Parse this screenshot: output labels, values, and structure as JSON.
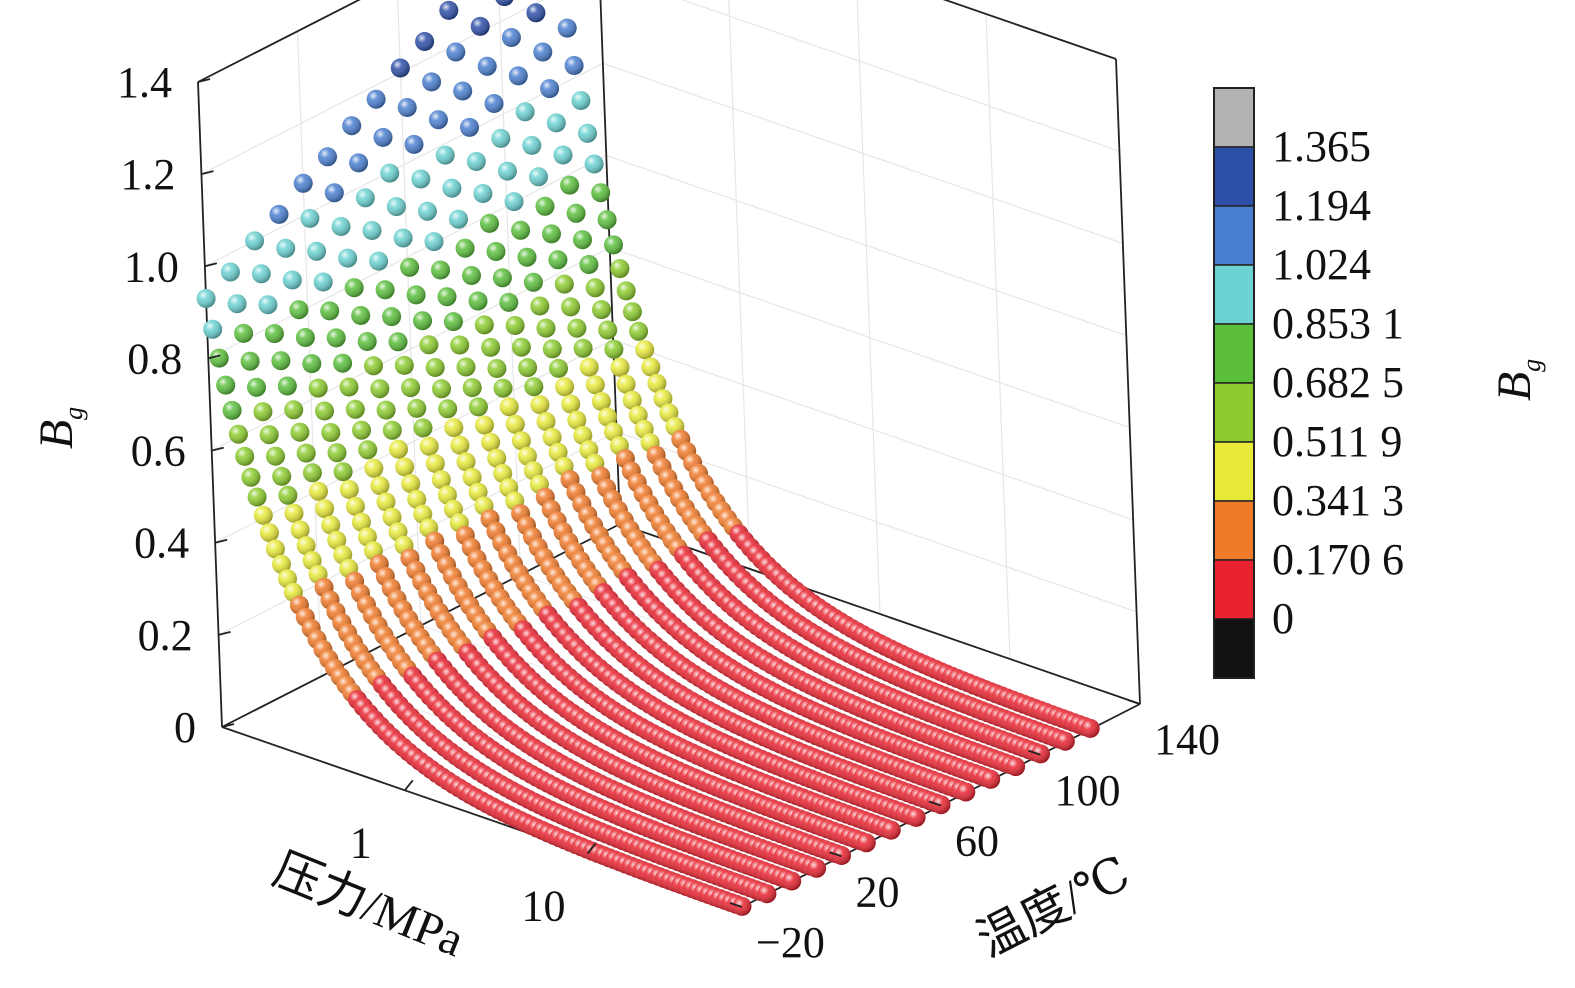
{
  "chart_data": {
    "type": "scatter",
    "subtype": "3d-scatter",
    "zlabel": "B",
    "zlabel_sub": "g",
    "xlabel": "压力/MPa",
    "ylabel": "温度/℃",
    "zlim": [
      0,
      1.4
    ],
    "z_ticks": [
      "0",
      "0.2",
      "0.4",
      "0.6",
      "0.8",
      "1.0",
      "1.2",
      "1.4"
    ],
    "pressure_scale": "log",
    "pressure_ticks": [
      "1",
      "10"
    ],
    "temperature_ticks": [
      "−20",
      "20",
      "60",
      "100",
      "140"
    ],
    "temperature_lim": [
      -20,
      140
    ],
    "temperature_series": [
      -20,
      -10,
      0,
      10,
      20,
      30,
      40,
      50,
      60,
      70,
      80,
      90,
      100,
      110,
      120
    ],
    "pressure_range_mpa": [
      0.1,
      70
    ],
    "bg_at_0_1_mpa": [
      0.93,
      0.96,
      1.0,
      1.03,
      1.07,
      1.1,
      1.14,
      1.17,
      1.21,
      1.24,
      1.28,
      1.31,
      1.35,
      1.38,
      1.41
    ],
    "colorbar": {
      "title": "B",
      "title_sub": "g",
      "labels": [
        "1.365",
        "1.194",
        "1.024",
        "0.853 1",
        "0.682 5",
        "0.511 9",
        "0.341 3",
        "0.170 6",
        "0"
      ],
      "colors": [
        "#b3b3b3",
        "#2e4fa8",
        "#4a7fd0",
        "#6cd2d2",
        "#5bbf3c",
        "#8ccc2e",
        "#e8ea3a",
        "#f07a2a",
        "#e8232f",
        "#111111"
      ]
    },
    "grid": true
  }
}
